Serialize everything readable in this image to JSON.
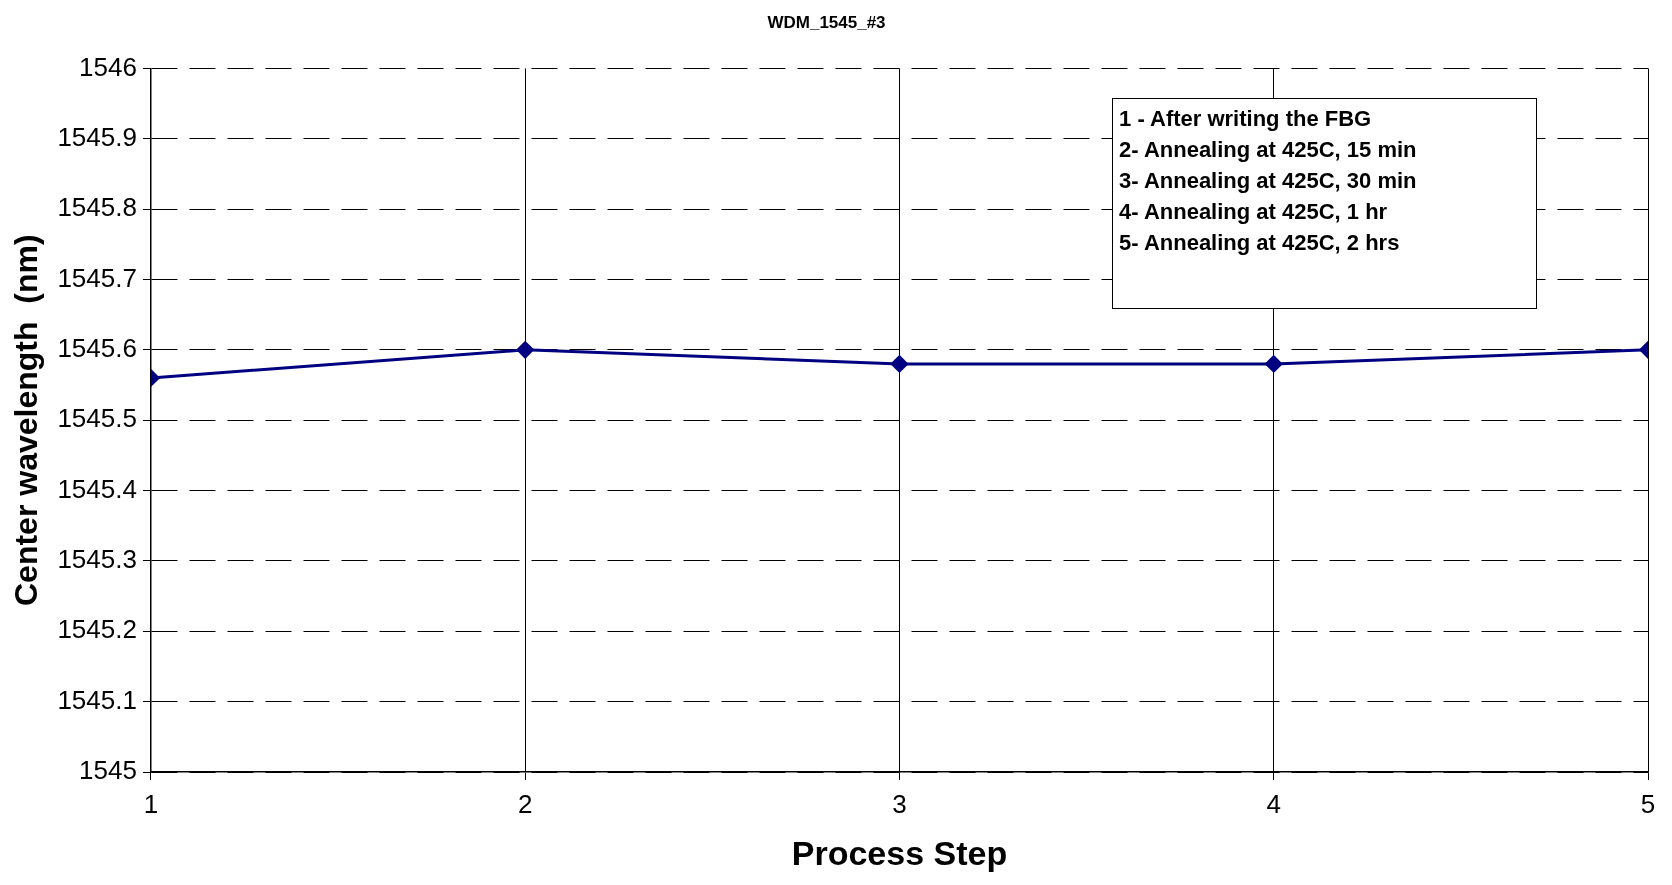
{
  "chart_data": {
    "type": "line",
    "title": "WDM_1545_#3",
    "xlabel": "Process Step",
    "ylabel": "Center wavelength  (nm)",
    "x": [
      1,
      2,
      3,
      4,
      5
    ],
    "series": [
      {
        "color": "#000080",
        "values": [
          1545.56,
          1545.6,
          1545.58,
          1545.58,
          1545.6
        ]
      }
    ],
    "xlim": [
      1,
      5
    ],
    "xticks": [
      1,
      2,
      3,
      4,
      5
    ],
    "ylim": [
      1545,
      1546
    ],
    "yticks": [
      1545,
      1545.1,
      1545.2,
      1545.3,
      1545.4,
      1545.5,
      1545.6,
      1545.7,
      1545.8,
      1545.9,
      1546
    ],
    "grid": true,
    "legend": false,
    "marker": "diamond",
    "line_style": "solid",
    "annotations": [
      "1 - After writing the FBG",
      "2- Annealing at 425C, 15 min",
      "3- Annealing at 425C, 30 min",
      "4- Annealing at 425C, 1 hr",
      "5- Annealing at 425C, 2 hrs"
    ]
  }
}
